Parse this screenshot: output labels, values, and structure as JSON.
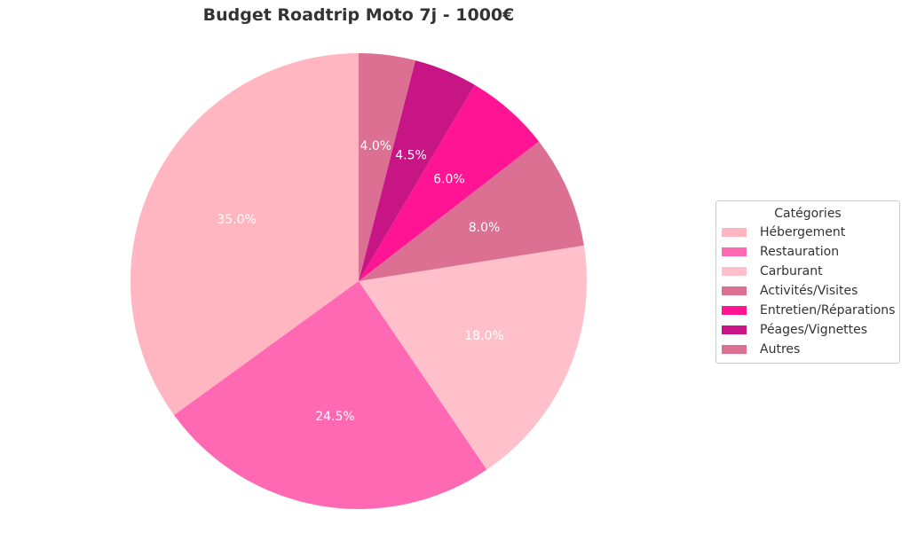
{
  "chart_data": {
    "type": "pie",
    "title": "Budget Roadtrip Moto 7j - 1000€",
    "categories": [
      "Hébergement",
      "Restauration",
      "Carburant",
      "Activités/Visites",
      "Entretien/Réparations",
      "Péages/Vignettes",
      "Autres"
    ],
    "values": [
      35.0,
      24.5,
      18.0,
      8.0,
      6.0,
      4.5,
      4.0
    ],
    "labels": [
      "35.0%",
      "24.5%",
      "18.0%",
      "8.0%",
      "6.0%",
      "4.5%",
      "4.0%"
    ],
    "colors": [
      "#FFB6C1",
      "#FF69B4",
      "#FFC0CB",
      "#DB7093",
      "#FF1493",
      "#C71585",
      "#DB7093"
    ],
    "start_angle": 90,
    "direction": "counterclockwise",
    "legend": {
      "title": "Catégories",
      "placement": "right"
    }
  }
}
